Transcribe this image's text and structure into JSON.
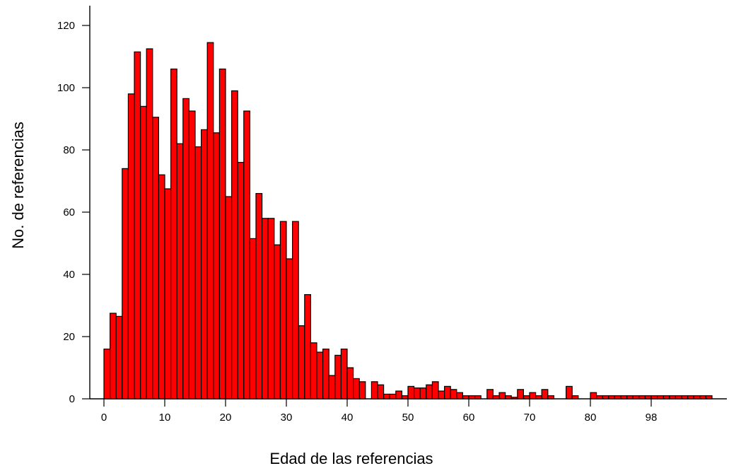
{
  "chart_data": {
    "type": "bar",
    "title": "",
    "xlabel": "Edad de las referencias",
    "ylabel": "No. de referencias",
    "x_ticks": [
      0,
      10,
      20,
      30,
      40,
      50,
      60,
      70,
      80,
      98
    ],
    "y_ticks": [
      0,
      20,
      40,
      60,
      80,
      100,
      120
    ],
    "ylim": [
      0,
      120
    ],
    "bar_color": "#ff0000",
    "edge_color": "#000000",
    "grid": false,
    "values": [
      16,
      27.5,
      26.5,
      74,
      98,
      111.5,
      94,
      112.5,
      90.5,
      72,
      67.5,
      106,
      82,
      96.5,
      92.5,
      81,
      86.5,
      114.5,
      85.5,
      106,
      65,
      99,
      76,
      92.5,
      51.5,
      66,
      58,
      58,
      49.5,
      57,
      45,
      57,
      23.5,
      33.5,
      18,
      15,
      16,
      7.5,
      14,
      16,
      10,
      6.5,
      5.5,
      0,
      5.5,
      4.5,
      1.5,
      1.5,
      2.5,
      1,
      4,
      3.5,
      3.5,
      4.5,
      5.5,
      2.5,
      4,
      3,
      2,
      1,
      1,
      1,
      0,
      3,
      1,
      2,
      1,
      0.5,
      3,
      1,
      2,
      1,
      3,
      1,
      0,
      0,
      4,
      1,
      0,
      0,
      2,
      1,
      1,
      1,
      1,
      1,
      1,
      1,
      1,
      1,
      1,
      1,
      1,
      1,
      1,
      1,
      1,
      1,
      1,
      1
    ]
  }
}
